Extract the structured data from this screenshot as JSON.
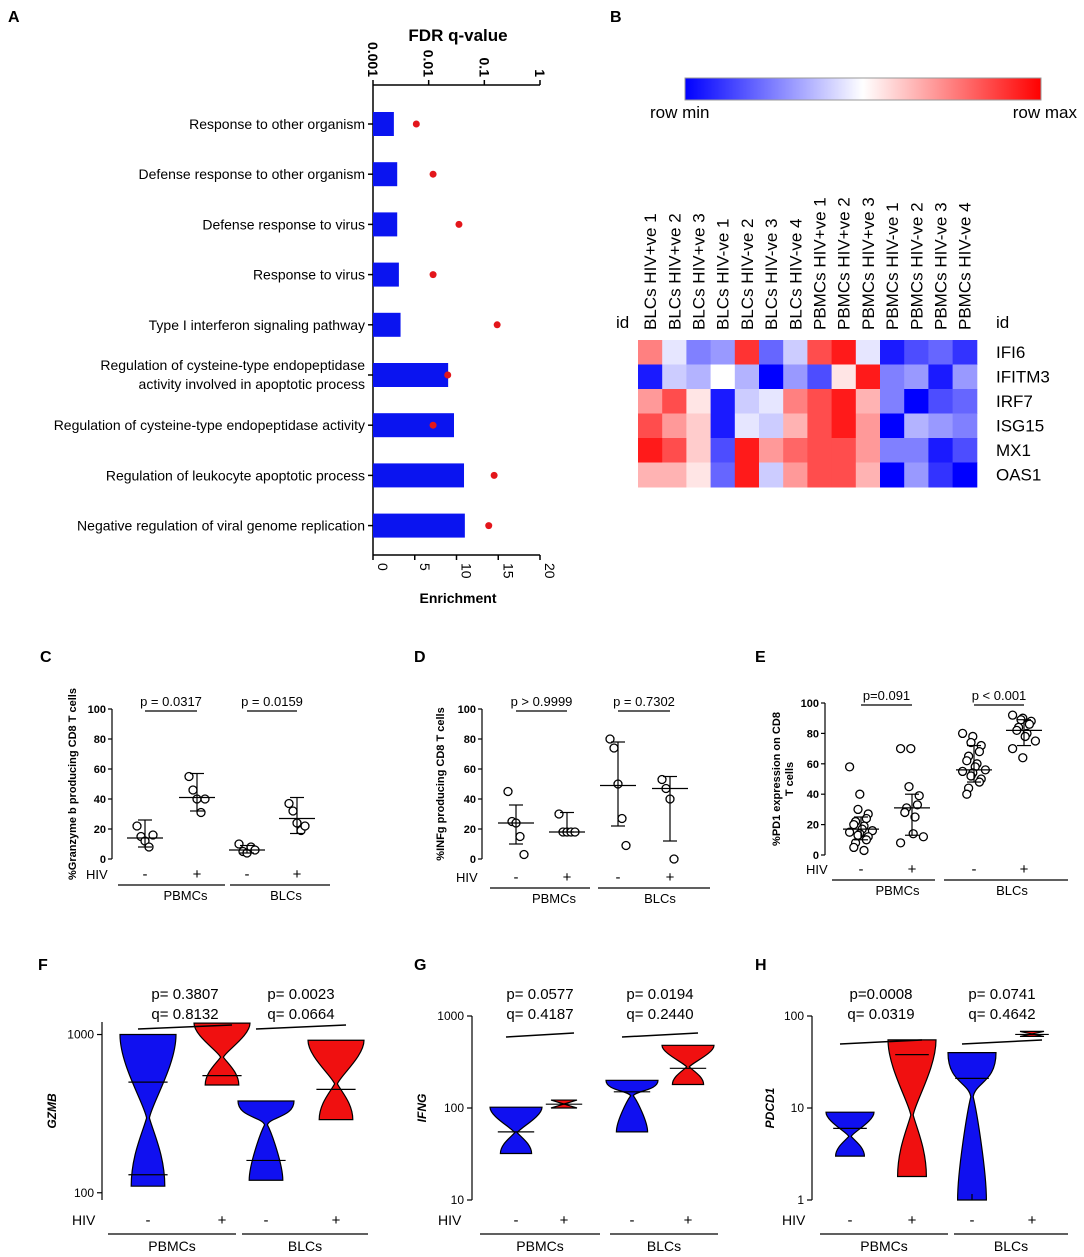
{
  "panel_labels": {
    "A": "A",
    "B": "B",
    "C": "C",
    "D": "D",
    "E": "E",
    "F": "F",
    "G": "G",
    "H": "H"
  },
  "colors": {
    "bar": "#0a14f0",
    "dot": "#e3161b",
    "blue": "#1010f0",
    "red": "#f01010"
  },
  "chart_data": [
    {
      "id": "A",
      "type": "bar",
      "title": "FDR q-value",
      "xlabel": "Enrichment",
      "categories": [
        "Response to other organism",
        "Defense response to other organism",
        "Defense response to virus",
        "Response to virus",
        "Type I interferon signaling pathway",
        "Regulation of cysteine-type endopeptidase activity involved in apoptotic process",
        "Regulation of cysteine-type endopeptidase activity",
        "Regulation of leukocyte apoptotic process",
        "Negative regulation of viral genome replication"
      ],
      "category_lines": [
        [
          "Response to other organism"
        ],
        [
          "Defense response to other organism"
        ],
        [
          "Defense response to virus"
        ],
        [
          "Response to virus"
        ],
        [
          "Type I interferon signaling pathway"
        ],
        [
          "Regulation of cysteine-type endopeptidase",
          "activity involved in apoptotic process"
        ],
        [
          "Regulation of cysteine-type endopeptidase activity"
        ],
        [
          "Regulation of leukocyte apoptotic process"
        ],
        [
          "Negative regulation of viral genome replication"
        ]
      ],
      "enrichment": [
        2.5,
        2.9,
        2.9,
        3.1,
        3.3,
        9.0,
        9.7,
        10.9,
        11.0
      ],
      "fdr_q": [
        0.006,
        0.012,
        0.035,
        0.012,
        0.17,
        0.022,
        0.012,
        0.15,
        0.12
      ],
      "xlim": [
        0,
        20
      ],
      "xticks": [
        0,
        5,
        10,
        15,
        20
      ],
      "q_ticks": [
        0.001,
        0.01,
        0.1,
        1
      ],
      "q_tick_labels": [
        "0.001",
        "0.01",
        "0.1",
        "1"
      ]
    },
    {
      "id": "B",
      "type": "heatmap",
      "legend_min": "row min",
      "legend_max": "row max",
      "id_label": "id",
      "columns": [
        "BLCs HIV+ve 1",
        "BLCs HIV+ve 2",
        "BLCs HIV+ve 3",
        "BLCs HIV-ve 1",
        "BLCs HIV-ve 2",
        "BLCs HIV-ve 3",
        "BLCs HIV-ve 4",
        "PBMCs HIV+ve 1",
        "PBMCs HIV+ve 2",
        "PBMCs HIV+ve 3",
        "PBMCs HIV-ve 1",
        "PBMCs HIV-ve 2",
        "PBMCs HIV-ve 3",
        "PBMCs HIV-ve 4"
      ],
      "rows": [
        "IFI6",
        "IFITM3",
        "IRF7",
        "ISG15",
        "MX1",
        "OAS1"
      ],
      "values": [
        [
          0.75,
          0.45,
          0.25,
          0.3,
          0.9,
          0.2,
          0.4,
          0.85,
          0.95,
          0.45,
          0.05,
          0.15,
          0.2,
          0.1
        ],
        [
          0.05,
          0.4,
          0.35,
          0.5,
          0.35,
          0.0,
          0.3,
          0.15,
          0.55,
          0.95,
          0.25,
          0.3,
          0.05,
          0.3
        ],
        [
          0.7,
          0.85,
          0.55,
          0.05,
          0.4,
          0.45,
          0.75,
          0.85,
          0.95,
          0.65,
          0.25,
          0.0,
          0.15,
          0.2
        ],
        [
          0.85,
          0.7,
          0.6,
          0.05,
          0.45,
          0.4,
          0.65,
          0.85,
          0.95,
          0.7,
          0.0,
          0.35,
          0.3,
          0.25
        ],
        [
          0.95,
          0.85,
          0.6,
          0.15,
          0.95,
          0.7,
          0.8,
          0.85,
          0.85,
          0.7,
          0.25,
          0.25,
          0.05,
          0.15
        ],
        [
          0.65,
          0.65,
          0.55,
          0.2,
          0.95,
          0.4,
          0.7,
          0.85,
          0.85,
          0.65,
          0.0,
          0.3,
          0.1,
          0.0
        ]
      ]
    },
    {
      "id": "C",
      "type": "scatter",
      "ylabel": "%Granzyme b producing CD8 T cells",
      "ylim": [
        0,
        100
      ],
      "yticks": [
        0,
        20,
        40,
        60,
        80,
        100
      ],
      "hiv_label": "HIV",
      "minus": "-",
      "plus": "+",
      "groups": [
        "PBMCs",
        "BLCs"
      ],
      "series": [
        {
          "name": "PBMCs HIV-",
          "values": [
            22,
            15,
            12,
            8,
            16
          ],
          "median": 14,
          "q1": 8,
          "q3": 26
        },
        {
          "name": "PBMCs HIV+",
          "values": [
            55,
            46,
            40,
            31,
            40
          ],
          "median": 41,
          "q1": 32,
          "q3": 57
        },
        {
          "name": "BLCs HIV-",
          "values": [
            10,
            5,
            4,
            8,
            6
          ],
          "median": 6,
          "q1": 4,
          "q3": 9
        },
        {
          "name": "BLCs HIV+",
          "values": [
            37,
            32,
            24,
            19,
            22
          ],
          "median": 27,
          "q1": 17,
          "q3": 41
        }
      ],
      "comparisons": [
        {
          "label": "p = 0.0317"
        },
        {
          "label": "p = 0.0159"
        }
      ]
    },
    {
      "id": "D",
      "type": "scatter",
      "ylabel": "%INFg producing CD8 T cells",
      "ylim": [
        0,
        100
      ],
      "yticks": [
        0,
        20,
        40,
        60,
        80,
        100
      ],
      "hiv_label": "HIV",
      "minus": "-",
      "plus": "+",
      "groups": [
        "PBMCs",
        "BLCs"
      ],
      "series": [
        {
          "name": "PBMCs HIV-",
          "values": [
            45,
            25,
            24,
            15,
            3
          ],
          "median": 24,
          "q1": 10,
          "q3": 36
        },
        {
          "name": "PBMCs HIV+",
          "values": [
            30,
            18,
            18,
            18,
            18
          ],
          "median": 18,
          "q1": 18,
          "q3": 31
        },
        {
          "name": "BLCs HIV-",
          "values": [
            80,
            74,
            50,
            27,
            9
          ],
          "median": 49,
          "q1": 22,
          "q3": 78
        },
        {
          "name": "BLCs HIV+",
          "values": [
            53,
            47,
            40,
            0
          ],
          "median": 47,
          "q1": 12,
          "q3": 55
        }
      ],
      "comparisons": [
        {
          "label": "p > 0.9999"
        },
        {
          "label": "p = 0.7302"
        }
      ]
    },
    {
      "id": "E",
      "type": "scatter",
      "ylabel": "%PD1 expression on CD8 T cells",
      "ylabel_lines": [
        "%PD1 expression on CD8",
        "T cells"
      ],
      "ylim": [
        0,
        100
      ],
      "yticks": [
        0,
        20,
        40,
        60,
        80,
        100
      ],
      "hiv_label": "HIV",
      "minus": "-",
      "plus": "+",
      "groups": [
        "PBMCs",
        "BLCs"
      ],
      "series": [
        {
          "name": "PBMCs HIV-",
          "values": [
            58,
            40,
            30,
            27,
            24,
            22,
            20,
            19,
            17,
            16,
            15,
            14,
            13,
            12,
            10,
            8,
            5,
            3
          ],
          "median": 17,
          "q1": 10,
          "q3": 25
        },
        {
          "name": "PBMCs HIV+",
          "values": [
            70,
            70,
            45,
            39,
            33,
            31,
            28,
            25,
            14,
            12,
            8
          ],
          "median": 31,
          "q1": 13,
          "q3": 40
        },
        {
          "name": "BLCs HIV-",
          "values": [
            80,
            78,
            74,
            72,
            68,
            65,
            62,
            60,
            58,
            56,
            55,
            54,
            52,
            50,
            48,
            44,
            40
          ],
          "median": 56,
          "q1": 48,
          "q3": 72
        },
        {
          "name": "BLCs HIV+",
          "values": [
            92,
            90,
            89,
            88,
            86,
            84,
            82,
            80,
            78,
            75,
            70,
            64
          ],
          "median": 82,
          "q1": 72,
          "q3": 89
        }
      ],
      "comparisons": [
        {
          "label": "p=0.091"
        },
        {
          "label": "p < 0.001"
        }
      ]
    },
    {
      "id": "F",
      "type": "violin",
      "ylabel": "GZMB",
      "yscale": "log",
      "ylim": [
        90,
        1200
      ],
      "yticks": [
        100,
        1000
      ],
      "ytick_labels": [
        "100",
        "1000"
      ],
      "hiv_label": "HIV",
      "minus": "-",
      "plus": "+",
      "groups": [
        "PBMCs",
        "BLCs"
      ],
      "violins": [
        {
          "name": "PBMCs HIV-",
          "min": 110,
          "max": 1000,
          "median": 130,
          "upper_line": 500,
          "color": "blue"
        },
        {
          "name": "PBMCs HIV+",
          "min": 480,
          "max": 1180,
          "median": 550,
          "color": "red"
        },
        {
          "name": "BLCs HIV-",
          "min": 120,
          "max": 380,
          "median": 160,
          "color": "blue"
        },
        {
          "name": "BLCs HIV+",
          "min": 290,
          "max": 920,
          "median": 450,
          "color": "red"
        }
      ],
      "stats": [
        {
          "p": "p= 0.3807",
          "q": "q= 0.8132"
        },
        {
          "p": "p= 0.0023",
          "q": "q= 0.0664"
        }
      ]
    },
    {
      "id": "G",
      "type": "violin",
      "ylabel": "IFNG",
      "yscale": "log",
      "ylim": [
        10,
        1000
      ],
      "yticks": [
        10,
        100,
        1000
      ],
      "ytick_labels": [
        "10",
        "100",
        "1000"
      ],
      "hiv_label": "HIV",
      "minus": "-",
      "plus": "+",
      "groups": [
        "PBMCs",
        "BLCs"
      ],
      "violins": [
        {
          "name": "PBMCs HIV-",
          "min": 32,
          "max": 102,
          "median": 55,
          "color": "blue"
        },
        {
          "name": "PBMCs HIV+",
          "min": 100,
          "max": 122,
          "median": 110,
          "color": "red"
        },
        {
          "name": "BLCs HIV-",
          "min": 55,
          "max": 200,
          "median": 150,
          "color": "blue"
        },
        {
          "name": "BLCs HIV+",
          "min": 180,
          "max": 480,
          "median": 270,
          "color": "red"
        }
      ],
      "stats": [
        {
          "p": "p= 0.0577",
          "q": "q= 0.4187"
        },
        {
          "p": "p= 0.0194",
          "q": "q= 0.2440"
        }
      ]
    },
    {
      "id": "H",
      "type": "violin",
      "ylabel": "PDCD1",
      "yscale": "log",
      "ylim": [
        1,
        100
      ],
      "yticks": [
        1,
        10,
        100
      ],
      "ytick_labels": [
        "1",
        "10",
        "100"
      ],
      "hiv_label": "HIV",
      "minus": "-",
      "plus": "+",
      "groups": [
        "PBMCs",
        "BLCs"
      ],
      "violins": [
        {
          "name": "PBMCs HIV-",
          "min": 3,
          "max": 9,
          "median": 6,
          "color": "blue"
        },
        {
          "name": "PBMCs HIV+",
          "min": 1.8,
          "max": 55,
          "median": 38,
          "color": "red"
        },
        {
          "name": "BLCs HIV-",
          "min": 1,
          "max": 40,
          "median": 21,
          "color": "blue"
        },
        {
          "name": "BLCs HIV+",
          "min": 60,
          "max": 68,
          "median": 63,
          "color": "red"
        }
      ],
      "stats": [
        {
          "p": "p=0.0008",
          "q": "q= 0.0319"
        },
        {
          "p": "p= 0.0741",
          "q": "q= 0.4642"
        }
      ]
    }
  ]
}
